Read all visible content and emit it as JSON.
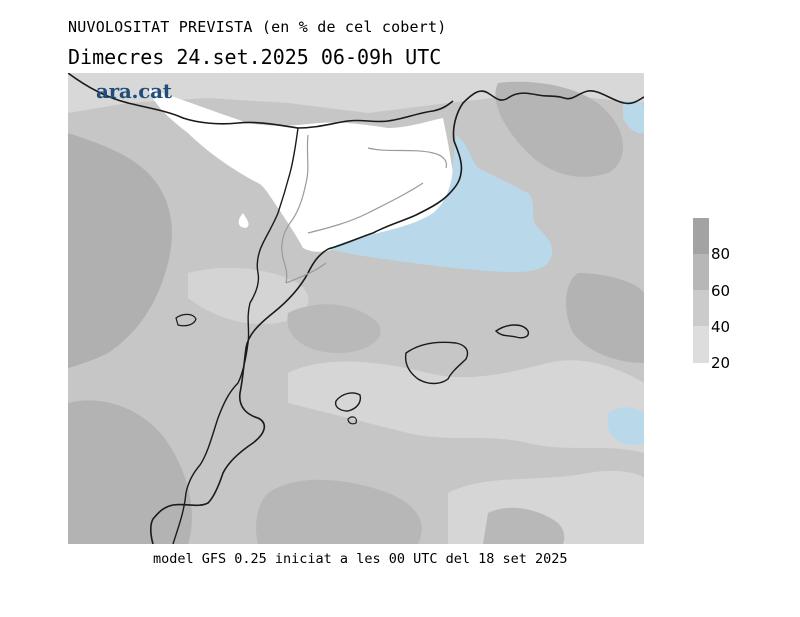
{
  "title": "NUVOLOSITAT PREVISTA (en % de cel cobert)",
  "subtitle": "Dimecres  24.set.2025 06-09h UTC",
  "logo": "ara.cat",
  "footer": "model GFS 0.25 iniciat a les 00 UTC del 18 set 2025",
  "legend": {
    "labels": [
      "80",
      "60",
      "40",
      "20"
    ],
    "colors": [
      "#a3a3a3",
      "#b7b7b7",
      "#cbcbcb",
      "#dddddd",
      "#ffffff"
    ],
    "low_color": "#b9d9ea"
  },
  "colors": {
    "clear_sky": "#ffffff",
    "low_band": "#b9d9ea",
    "coast": "#1a1a1a",
    "province_border": "#9a9a9a"
  }
}
